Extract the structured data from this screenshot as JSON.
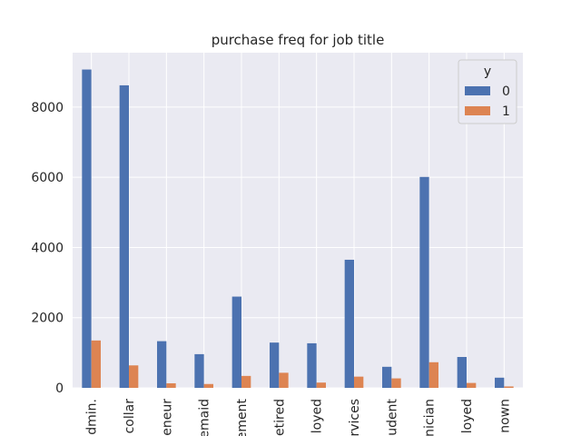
{
  "chart_data": {
    "type": "bar",
    "title": "purchase freq for job title",
    "xlabel": "",
    "ylabel": "",
    "categories": [
      "dmin.",
      "collar",
      "eneur",
      "emaid",
      "ement",
      "etired",
      "loyed",
      "rvices",
      "udent",
      "nician",
      "loyed",
      "nown"
    ],
    "series": [
      {
        "name": "0",
        "values": [
          9070,
          8620,
          1330,
          960,
          2600,
          1290,
          1270,
          3650,
          600,
          6010,
          880,
          290
        ]
      },
      {
        "name": "1",
        "values": [
          1350,
          640,
          130,
          110,
          340,
          430,
          150,
          320,
          270,
          730,
          140,
          40
        ]
      }
    ],
    "ylim": [
      0,
      9550
    ],
    "yticks": [
      0,
      2000,
      4000,
      6000,
      8000
    ],
    "legend": {
      "title": "y",
      "placement": "top-right"
    },
    "grid": true,
    "colors": {
      "series0": "#4c72b0",
      "series1": "#dd8452",
      "background": "#eaeaf2",
      "grid": "#ffffff"
    }
  }
}
